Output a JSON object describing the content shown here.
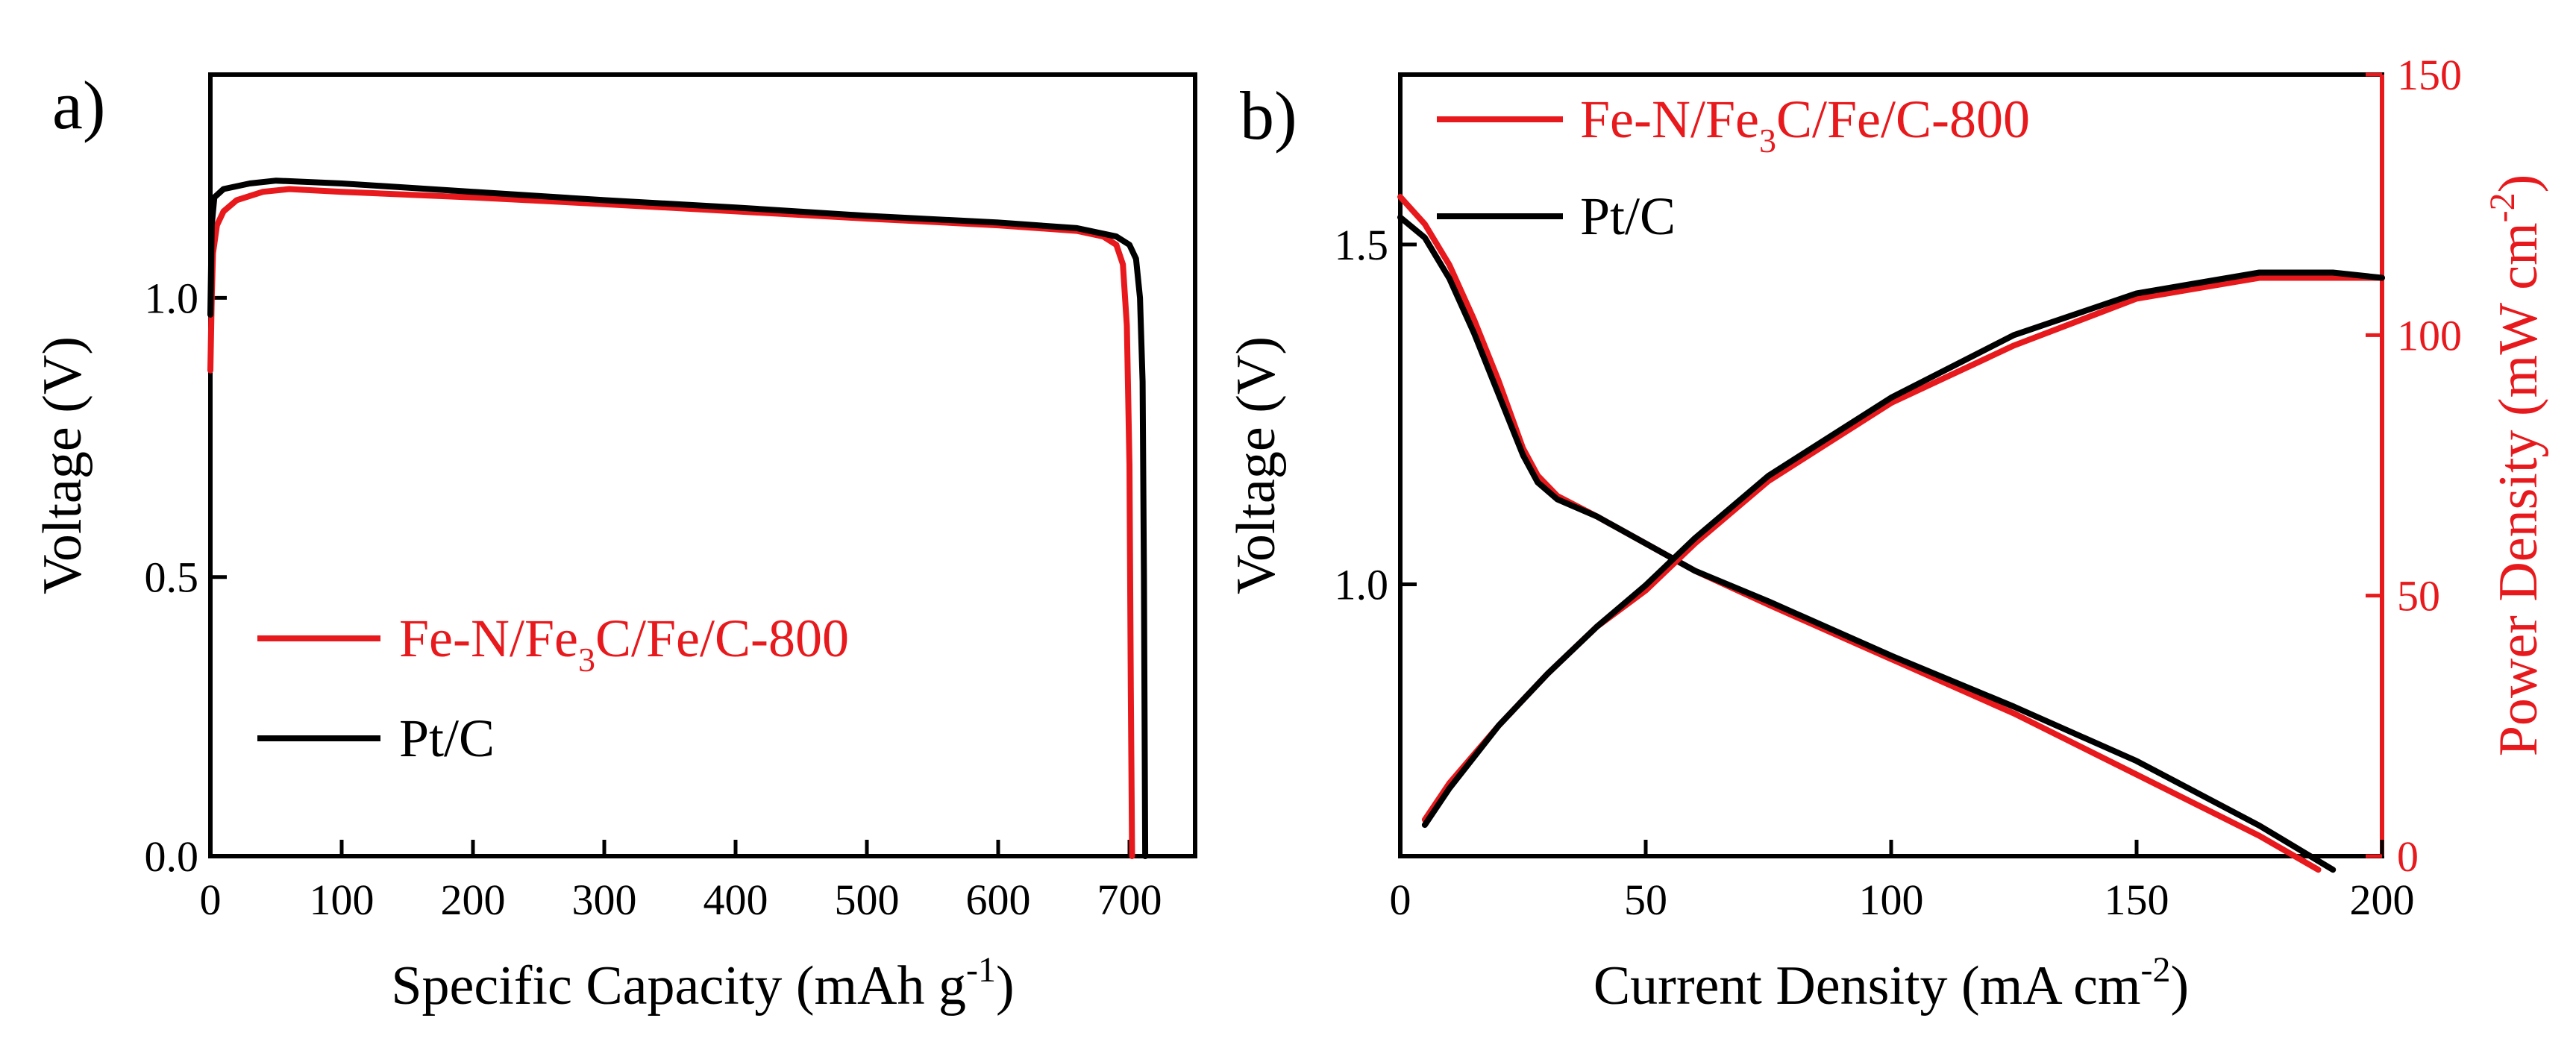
{
  "colors": {
    "fe_series": "#e8191c",
    "pt_series": "#000000",
    "right_axis": "#e8191c",
    "axis": "#000000"
  },
  "chart_data": [
    {
      "panel_label": "a)",
      "type": "line",
      "xlabel_main": "Specific Capacity (mAh g",
      "xlabel_sup": "-1",
      "xlabel_close": ")",
      "ylabel": "Voltage (V)",
      "xlim": [
        0,
        750
      ],
      "ylim": [
        0,
        1.4
      ],
      "xticks": [
        0,
        100,
        200,
        300,
        400,
        500,
        600,
        700
      ],
      "xtick_labels": [
        "0",
        "100",
        "200",
        "300",
        "400",
        "500",
        "600",
        "700"
      ],
      "yticks": [
        0,
        0.5,
        1.0
      ],
      "ytick_labels": [
        "0.0",
        "0.5",
        "1.0"
      ],
      "legend": [
        {
          "parts": [
            "Fe-N/Fe",
            "3",
            "C/Fe/C-800"
          ],
          "color": "#e8191c"
        },
        {
          "parts": [
            "Pt/C",
            "",
            ""
          ],
          "color": "#000000"
        }
      ],
      "series": [
        {
          "name": "Fe-N/Fe3C/Fe/C-800",
          "color": "#e8191c",
          "points": [
            [
              0,
              0.87
            ],
            [
              1,
              1.0
            ],
            [
              2,
              1.08
            ],
            [
              5,
              1.13
            ],
            [
              10,
              1.155
            ],
            [
              20,
              1.175
            ],
            [
              40,
              1.19
            ],
            [
              60,
              1.195
            ],
            [
              100,
              1.19
            ],
            [
              200,
              1.18
            ],
            [
              300,
              1.168
            ],
            [
              400,
              1.155
            ],
            [
              500,
              1.142
            ],
            [
              600,
              1.13
            ],
            [
              660,
              1.12
            ],
            [
              680,
              1.11
            ],
            [
              690,
              1.095
            ],
            [
              695,
              1.06
            ],
            [
              698,
              0.95
            ],
            [
              700,
              0.7
            ],
            [
              701,
              0.3
            ],
            [
              702,
              0.0
            ]
          ]
        },
        {
          "name": "Pt/C",
          "color": "#000000",
          "points": [
            [
              0,
              0.97
            ],
            [
              1,
              1.13
            ],
            [
              3,
              1.18
            ],
            [
              10,
              1.195
            ],
            [
              30,
              1.205
            ],
            [
              50,
              1.21
            ],
            [
              100,
              1.205
            ],
            [
              200,
              1.19
            ],
            [
              300,
              1.175
            ],
            [
              400,
              1.162
            ],
            [
              500,
              1.147
            ],
            [
              600,
              1.135
            ],
            [
              660,
              1.125
            ],
            [
              690,
              1.11
            ],
            [
              700,
              1.095
            ],
            [
              705,
              1.07
            ],
            [
              708,
              1.0
            ],
            [
              710,
              0.85
            ],
            [
              711,
              0.5
            ],
            [
              712,
              0.0
            ]
          ]
        }
      ]
    },
    {
      "panel_label": "b)",
      "type": "line",
      "xlabel_main": "Current Density (mA cm",
      "xlabel_sup": "-2",
      "xlabel_close": ")",
      "ylabel": "Voltage (V)",
      "y2label_main": "Power Density (mW cm",
      "y2label_sup": "-2",
      "y2label_close": ")",
      "xlim": [
        0,
        200
      ],
      "ylim": [
        0.6,
        1.75
      ],
      "y2lim": [
        0,
        150
      ],
      "xticks": [
        0,
        50,
        100,
        150,
        200
      ],
      "xtick_labels": [
        "0",
        "50",
        "100",
        "150",
        "200"
      ],
      "yticks": [
        1.0,
        1.5
      ],
      "ytick_labels": [
        "1.0",
        "1.5"
      ],
      "y2ticks": [
        0,
        50,
        100,
        150
      ],
      "y2tick_labels": [
        "0",
        "50",
        "100",
        "150"
      ],
      "legend": [
        {
          "parts": [
            "Fe-N/Fe",
            "3",
            "C/Fe/C-800"
          ],
          "color": "#e8191c"
        },
        {
          "parts": [
            "Pt/C",
            "",
            ""
          ],
          "color": "#000000"
        }
      ],
      "series": [
        {
          "name": "Fe-N/Fe3C/Fe/C-800 voltage",
          "color": "#e8191c",
          "axis": "left",
          "points": [
            [
              0,
              1.57
            ],
            [
              5,
              1.53
            ],
            [
              10,
              1.47
            ],
            [
              15,
              1.39
            ],
            [
              20,
              1.3
            ],
            [
              25,
              1.2
            ],
            [
              28,
              1.16
            ],
            [
              32,
              1.13
            ],
            [
              40,
              1.1
            ],
            [
              50,
              1.06
            ],
            [
              60,
              1.02
            ],
            [
              75,
              0.97
            ],
            [
              100,
              0.89
            ],
            [
              125,
              0.81
            ],
            [
              150,
              0.72
            ],
            [
              175,
              0.63
            ],
            [
              187,
              0.58
            ]
          ]
        },
        {
          "name": "Pt/C voltage",
          "color": "#000000",
          "axis": "left",
          "points": [
            [
              0,
              1.54
            ],
            [
              5,
              1.51
            ],
            [
              10,
              1.45
            ],
            [
              15,
              1.37
            ],
            [
              20,
              1.28
            ],
            [
              25,
              1.19
            ],
            [
              28,
              1.15
            ],
            [
              32,
              1.125
            ],
            [
              40,
              1.1
            ],
            [
              50,
              1.06
            ],
            [
              60,
              1.02
            ],
            [
              75,
              0.975
            ],
            [
              100,
              0.895
            ],
            [
              125,
              0.82
            ],
            [
              150,
              0.74
            ],
            [
              175,
              0.645
            ],
            [
              190,
              0.58
            ]
          ]
        },
        {
          "name": "Fe-N/Fe3C/Fe/C-800 power density",
          "color": "#e8191c",
          "axis": "right",
          "points": [
            [
              5,
              7
            ],
            [
              10,
              14
            ],
            [
              20,
              25
            ],
            [
              30,
              35
            ],
            [
              40,
              44
            ],
            [
              50,
              51
            ],
            [
              60,
              60
            ],
            [
              75,
              72
            ],
            [
              100,
              87
            ],
            [
              125,
              98
            ],
            [
              150,
              107
            ],
            [
              175,
              111
            ],
            [
              200,
              111
            ]
          ]
        },
        {
          "name": "Pt/C power density",
          "color": "#000000",
          "axis": "right",
          "points": [
            [
              5,
              6
            ],
            [
              10,
              13
            ],
            [
              20,
              25
            ],
            [
              30,
              35
            ],
            [
              40,
              44
            ],
            [
              50,
              52
            ],
            [
              60,
              61
            ],
            [
              75,
              73
            ],
            [
              100,
              88
            ],
            [
              125,
              100
            ],
            [
              150,
              108
            ],
            [
              175,
              112
            ],
            [
              190,
              112
            ],
            [
              200,
              111
            ]
          ]
        }
      ]
    }
  ]
}
